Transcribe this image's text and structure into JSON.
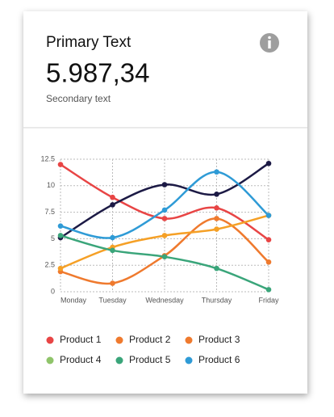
{
  "header": {
    "title": "Primary Text",
    "value": "5.987,34",
    "subtitle": "Secondary text"
  },
  "chart_data": {
    "type": "line",
    "smooth": true,
    "grid": true,
    "categories": [
      "Monday",
      "Tuesday",
      "Wednesday",
      "Thursday",
      "Friday"
    ],
    "ylim": [
      0,
      12.5
    ],
    "yticks": [
      0,
      2.5,
      5,
      7.5,
      10,
      12.5
    ],
    "series": [
      {
        "name": "Product 1",
        "color": "#e84545",
        "line_color": "#e84545",
        "values": [
          12,
          8.9,
          6.9,
          7.9,
          4.9
        ]
      },
      {
        "name": "Product 2",
        "color": "#ef7a2e",
        "line_color": "#ef7a2e",
        "values": [
          1.9,
          0.8,
          3.4,
          6.9,
          2.8
        ]
      },
      {
        "name": "Product 3",
        "color": "#ef7a2e",
        "line_color": "#f5a026",
        "values": [
          2.2,
          4.2,
          5.3,
          5.9,
          7.2
        ]
      },
      {
        "name": "Product 4",
        "color": "#8fc46a",
        "line_color": "#1c1a45",
        "values": [
          5.1,
          8.2,
          10.1,
          9.2,
          12.1
        ]
      },
      {
        "name": "Product 5",
        "color": "#3aa57a",
        "line_color": "#3aa57a",
        "values": [
          5.3,
          3.9,
          3.3,
          2.2,
          0.2
        ]
      },
      {
        "name": "Product 6",
        "color": "#2f9bd6",
        "line_color": "#2f9bd6",
        "values": [
          6.2,
          5.1,
          7.7,
          11.3,
          7.2
        ]
      }
    ]
  }
}
